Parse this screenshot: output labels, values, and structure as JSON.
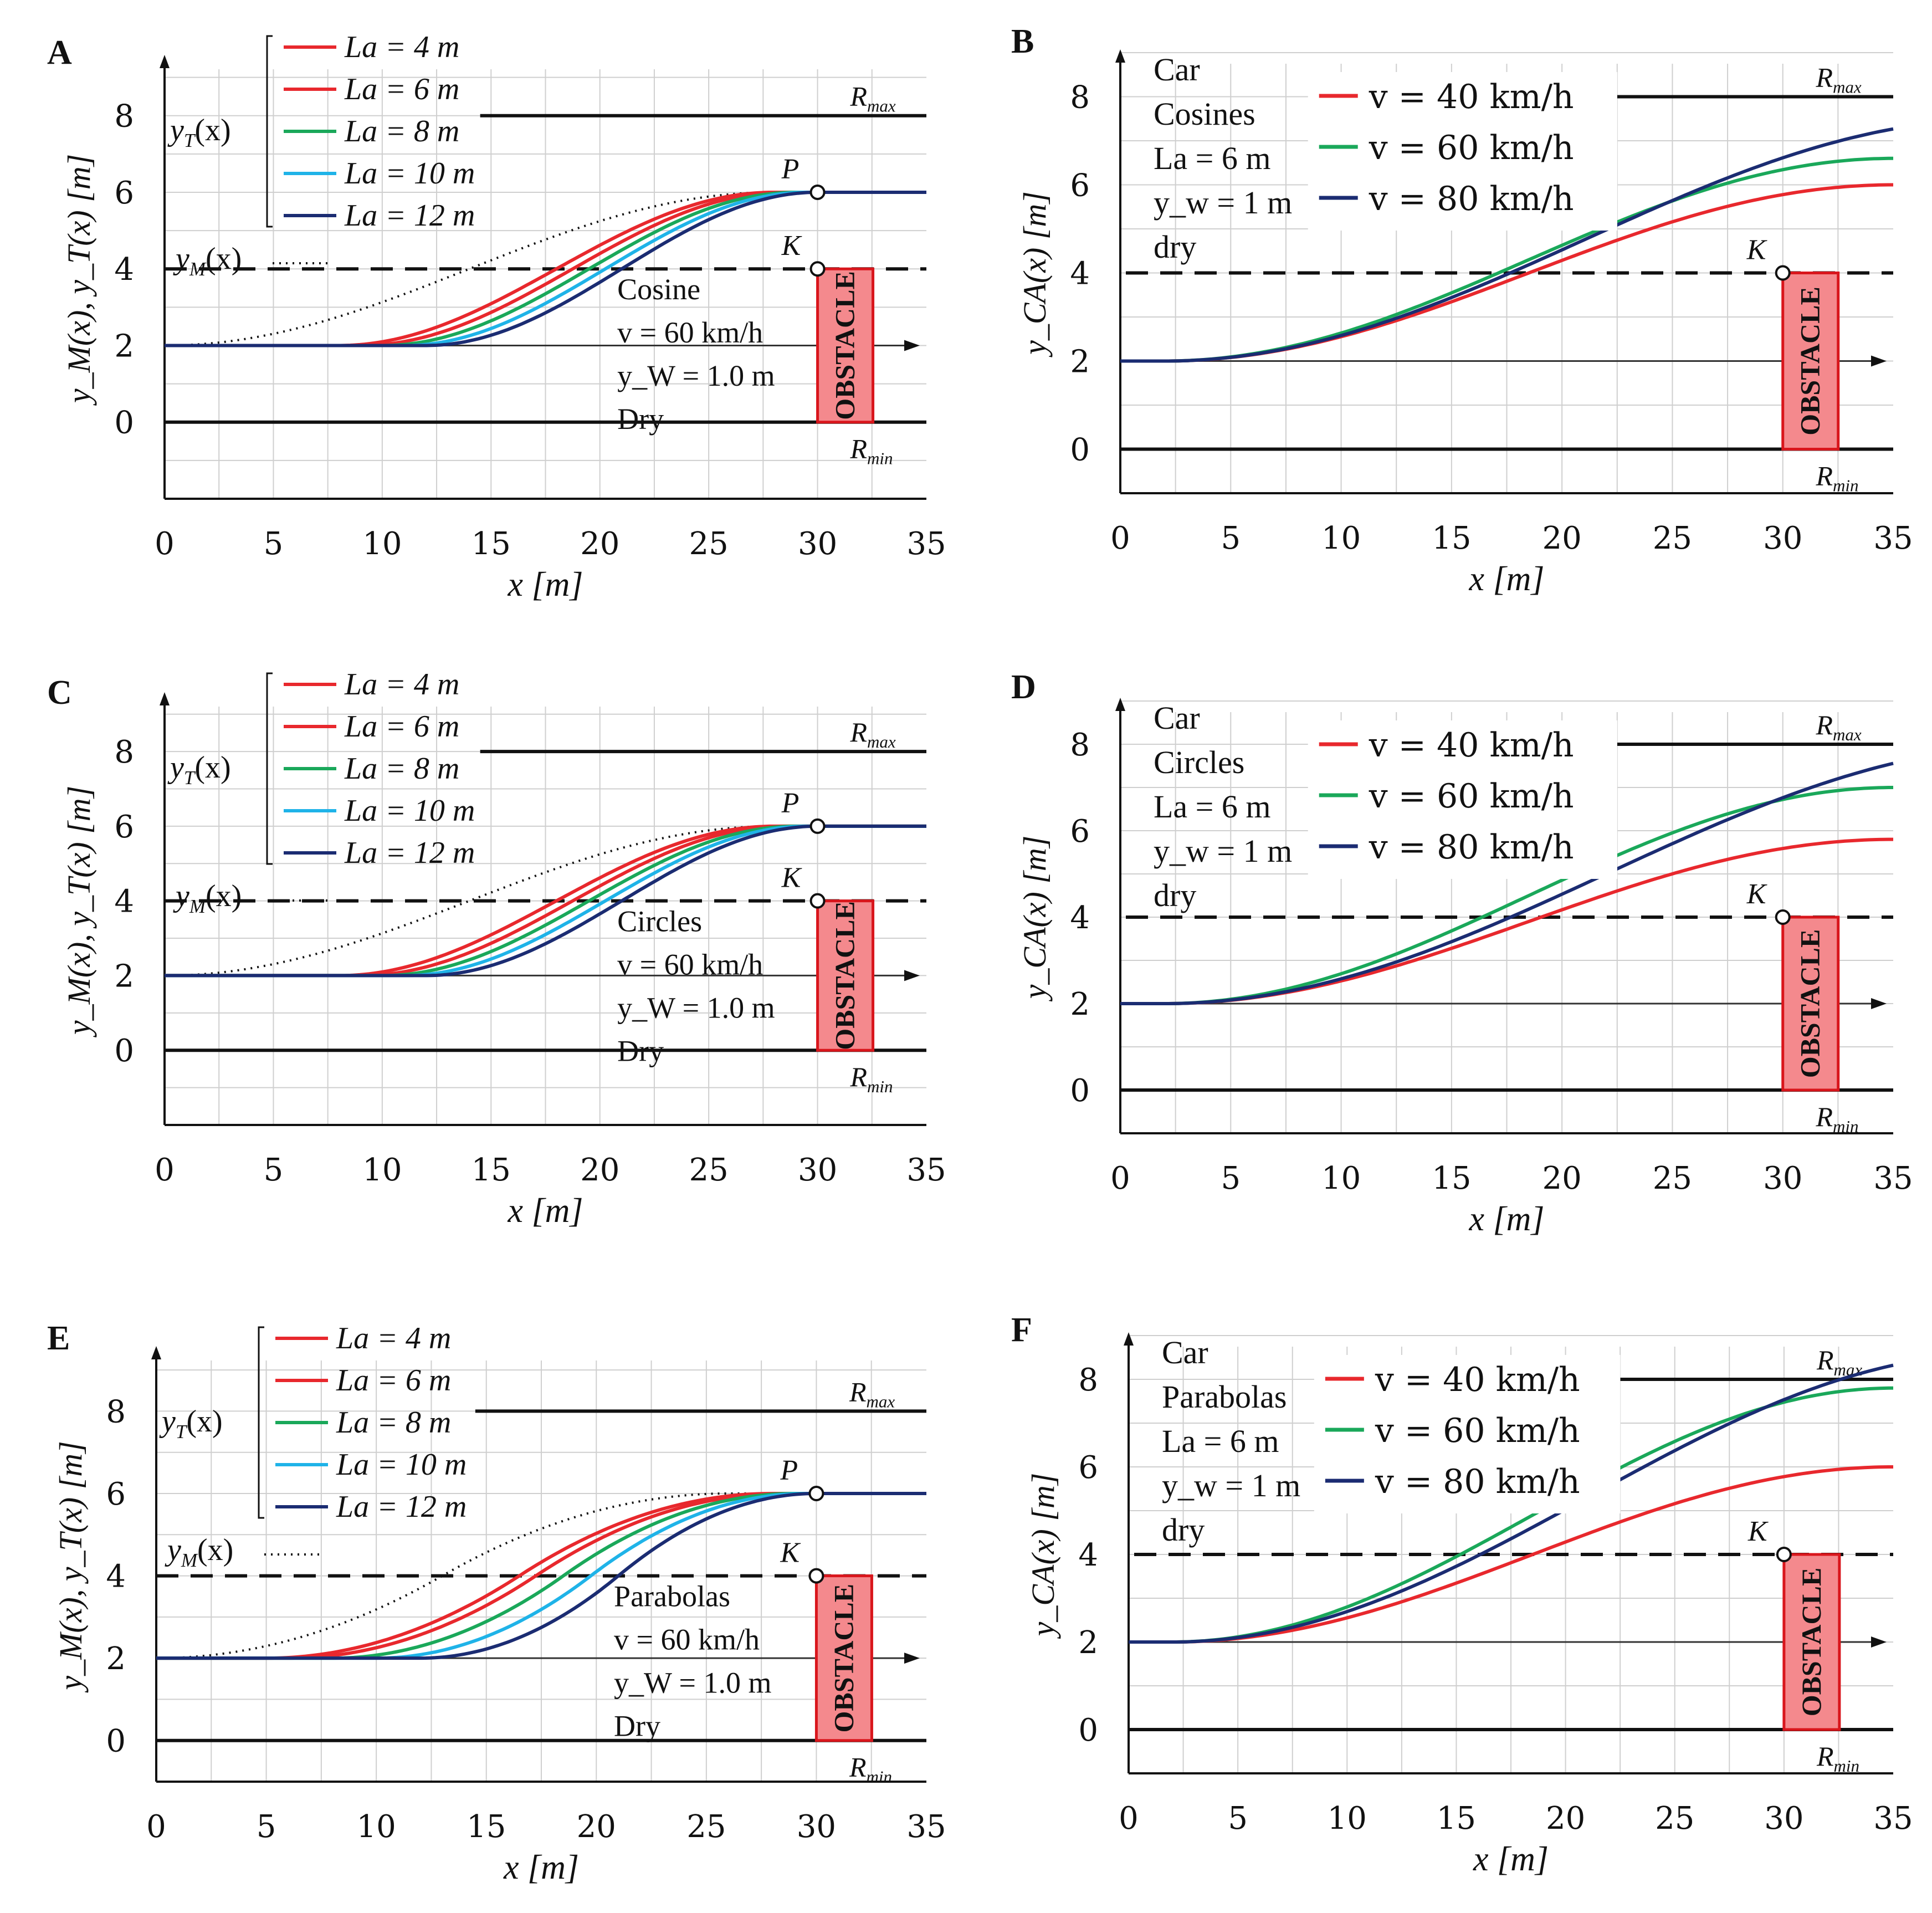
{
  "figure": {
    "panels": [
      "A",
      "B",
      "C",
      "D",
      "E",
      "F"
    ]
  },
  "chart_data": [
    {
      "id": "A",
      "type": "line",
      "xlabel": "x [m]",
      "ylabel": "y_M(x), y_T(x) [m]",
      "xlim": [
        0,
        35
      ],
      "ylim": [
        -2,
        9.5
      ],
      "xticks": [
        "0",
        "5",
        "10",
        "15",
        "20",
        "25",
        "30",
        "35"
      ],
      "yticks": [
        "0",
        "2",
        "4",
        "6",
        "8"
      ],
      "legend_group": "y_T(x)",
      "legend_model": "y_M(x)",
      "info": [
        "Cosine",
        "v = 60 km/h",
        "y_W = 1.0 m",
        "Dry"
      ],
      "labels": {
        "rmax": "R_max",
        "rmin": "R_min",
        "p": "P",
        "k": "K",
        "obstacle": "OBSTACLE"
      },
      "reference": {
        "rmax": 8,
        "rmin": 0,
        "k": 4,
        "start": 2,
        "target": 6,
        "kx": 30,
        "px": 30
      },
      "model_curve": {
        "kind": "cosine",
        "x0": 0,
        "x1": 28
      },
      "series": [
        {
          "name": "La = 4 m",
          "color": "#e8282d",
          "kind": "cosine",
          "x0": 8,
          "x1": 28
        },
        {
          "name": "La = 6 m",
          "color": "#e8282d",
          "kind": "cosine",
          "x0": 9,
          "x1": 28.5
        },
        {
          "name": "La = 8 m",
          "color": "#1aa85a",
          "kind": "cosine",
          "x0": 10,
          "x1": 29
        },
        {
          "name": "La = 10 m",
          "color": "#1fb3e8",
          "kind": "cosine",
          "x0": 11,
          "x1": 29.5
        },
        {
          "name": "La = 12 m",
          "color": "#1b2c72",
          "kind": "cosine",
          "x0": 12,
          "x1": 30
        }
      ]
    },
    {
      "id": "B",
      "type": "line",
      "xlabel": "x [m]",
      "ylabel": "y_CA(x) [m]",
      "xlim": [
        0,
        35
      ],
      "ylim": [
        -1,
        9
      ],
      "xticks": [
        "0",
        "5",
        "10",
        "15",
        "20",
        "25",
        "30",
        "35"
      ],
      "yticks": [
        "0",
        "2",
        "4",
        "6",
        "8"
      ],
      "info": [
        "Car",
        "Cosines",
        "La = 6 m",
        "y_w = 1 m",
        "dry"
      ],
      "labels": {
        "rmax": "R_max",
        "rmin": "R_min",
        "k": "K",
        "obstacle": "OBSTACLE"
      },
      "reference": {
        "rmax": 8,
        "rmin": 0,
        "k": 4,
        "start": 2,
        "kx": 30
      },
      "series": [
        {
          "name": "v = 40 km/h",
          "color": "#e8282d",
          "kind": "cosine",
          "x0": 2,
          "x1": 35,
          "y1": 6.0
        },
        {
          "name": "v = 60 km/h",
          "color": "#1aa85a",
          "kind": "cosine",
          "x0": 2,
          "x1": 35,
          "y1": 6.6
        },
        {
          "name": "v = 80 km/h",
          "color": "#1b2c72",
          "kind": "cosine",
          "x0": 2,
          "x1": 40,
          "y1": 7.5
        }
      ]
    },
    {
      "id": "C",
      "type": "line",
      "xlabel": "x [m]",
      "ylabel": "y_M(x), y_T(x) [m]",
      "xlim": [
        0,
        35
      ],
      "ylim": [
        -2,
        9.5
      ],
      "xticks": [
        "0",
        "5",
        "10",
        "15",
        "20",
        "25",
        "30",
        "35"
      ],
      "yticks": [
        "0",
        "2",
        "4",
        "6",
        "8"
      ],
      "legend_group": "y_T(x)",
      "legend_model": "y_M(x)",
      "info": [
        "Circles",
        "v = 60 km/h",
        "y_W = 1.0 m",
        "Dry"
      ],
      "labels": {
        "rmax": "R_max",
        "rmin": "R_min",
        "p": "P",
        "k": "K",
        "obstacle": "OBSTACLE"
      },
      "reference": {
        "rmax": 8,
        "rmin": 0,
        "k": 4,
        "start": 2,
        "target": 6,
        "kx": 30,
        "px": 30
      },
      "model_curve": {
        "kind": "cosine",
        "x0": 0,
        "x1": 28
      },
      "series": [
        {
          "name": "La = 4 m",
          "color": "#e8282d",
          "kind": "cosine",
          "x0": 8,
          "x1": 28
        },
        {
          "name": "La = 6 m",
          "color": "#e8282d",
          "kind": "cosine",
          "x0": 9,
          "x1": 28.5
        },
        {
          "name": "La = 8 m",
          "color": "#1aa85a",
          "kind": "cosine",
          "x0": 10,
          "x1": 29
        },
        {
          "name": "La = 10 m",
          "color": "#1fb3e8",
          "kind": "cosine",
          "x0": 11,
          "x1": 29.5
        },
        {
          "name": "La = 12 m",
          "color": "#1b2c72",
          "kind": "cosine",
          "x0": 12,
          "x1": 30
        }
      ]
    },
    {
      "id": "D",
      "type": "line",
      "xlabel": "x [m]",
      "ylabel": "y_CA(x) [m]",
      "xlim": [
        0,
        35
      ],
      "ylim": [
        -1,
        9
      ],
      "xticks": [
        "0",
        "5",
        "10",
        "15",
        "20",
        "25",
        "30",
        "35"
      ],
      "yticks": [
        "0",
        "2",
        "4",
        "6",
        "8"
      ],
      "info": [
        "Car",
        "Circles",
        "La = 6 m",
        "y_w = 1 m",
        "dry"
      ],
      "labels": {
        "rmax": "R_max",
        "rmin": "R_min",
        "k": "K",
        "obstacle": "OBSTACLE"
      },
      "reference": {
        "rmax": 8,
        "rmin": 0,
        "k": 4,
        "start": 2,
        "kx": 30
      },
      "series": [
        {
          "name": "v = 40 km/h",
          "color": "#e8282d",
          "kind": "cosine",
          "x0": 2,
          "x1": 35,
          "y1": 5.8
        },
        {
          "name": "v = 60 km/h",
          "color": "#1aa85a",
          "kind": "cosine",
          "x0": 2,
          "x1": 35,
          "y1": 7.0
        },
        {
          "name": "v = 80 km/h",
          "color": "#1b2c72",
          "kind": "cosine",
          "x0": 2,
          "x1": 42,
          "y1": 8.0
        }
      ]
    },
    {
      "id": "E",
      "type": "line",
      "xlabel": "x [m]",
      "ylabel": "y_M(x), y_T(x) [m]",
      "xlim": [
        0,
        35
      ],
      "ylim": [
        -1,
        9.5
      ],
      "xticks": [
        "0",
        "5",
        "10",
        "15",
        "20",
        "25",
        "30",
        "35"
      ],
      "yticks": [
        "0",
        "2",
        "4",
        "6",
        "8"
      ],
      "legend_group": "y_T(x)",
      "legend_model": "y_M(x)",
      "info": [
        "Parabolas",
        "v = 60 km/h",
        "y_W = 1.0 m",
        "Dry"
      ],
      "labels": {
        "rmax": "R_max",
        "rmin": "R_min",
        "p": "P",
        "k": "K",
        "obstacle": "OBSTACLE"
      },
      "reference": {
        "rmax": 8,
        "rmin": 0,
        "k": 4,
        "start": 2,
        "target": 6,
        "kx": 30,
        "px": 30
      },
      "model_curve": {
        "kind": "parabola",
        "x0": 0,
        "x1": 26
      },
      "series": [
        {
          "name": "La = 4 m",
          "color": "#e8282d",
          "kind": "parabola",
          "x0": 5,
          "x1": 28
        },
        {
          "name": "La = 6 m",
          "color": "#e8282d",
          "kind": "parabola",
          "x0": 6,
          "x1": 28.5
        },
        {
          "name": "La = 8 m",
          "color": "#1aa85a",
          "kind": "parabola",
          "x0": 8,
          "x1": 29
        },
        {
          "name": "La = 10 m",
          "color": "#1fb3e8",
          "kind": "parabola",
          "x0": 10,
          "x1": 29.5
        },
        {
          "name": "La = 12 m",
          "color": "#1b2c72",
          "kind": "parabola",
          "x0": 12,
          "x1": 30
        }
      ]
    },
    {
      "id": "F",
      "type": "line",
      "xlabel": "x [m]",
      "ylabel": "y_CA(x) [m]",
      "xlim": [
        0,
        35
      ],
      "ylim": [
        -1,
        9
      ],
      "xticks": [
        "0",
        "5",
        "10",
        "15",
        "20",
        "25",
        "30",
        "35"
      ],
      "yticks": [
        "0",
        "2",
        "4",
        "6",
        "8"
      ],
      "info": [
        "Car",
        "Parabolas",
        "La = 6 m",
        "y_w = 1 m",
        "dry"
      ],
      "labels": {
        "rmax": "R_max",
        "rmin": "R_min",
        "k": "K",
        "obstacle": "OBSTACLE"
      },
      "reference": {
        "rmax": 8,
        "rmin": 0,
        "k": 4,
        "start": 2,
        "kx": 30
      },
      "series": [
        {
          "name": "v = 40 km/h",
          "color": "#e8282d",
          "kind": "cosine",
          "x0": 2,
          "x1": 35,
          "y1": 6.0
        },
        {
          "name": "v = 60 km/h",
          "color": "#1aa85a",
          "kind": "cosine",
          "x0": 2,
          "x1": 35,
          "y1": 7.8
        },
        {
          "name": "v = 80 km/h",
          "color": "#1b2c72",
          "kind": "cosine",
          "x0": 2,
          "x1": 40,
          "y1": 8.6
        }
      ]
    }
  ]
}
